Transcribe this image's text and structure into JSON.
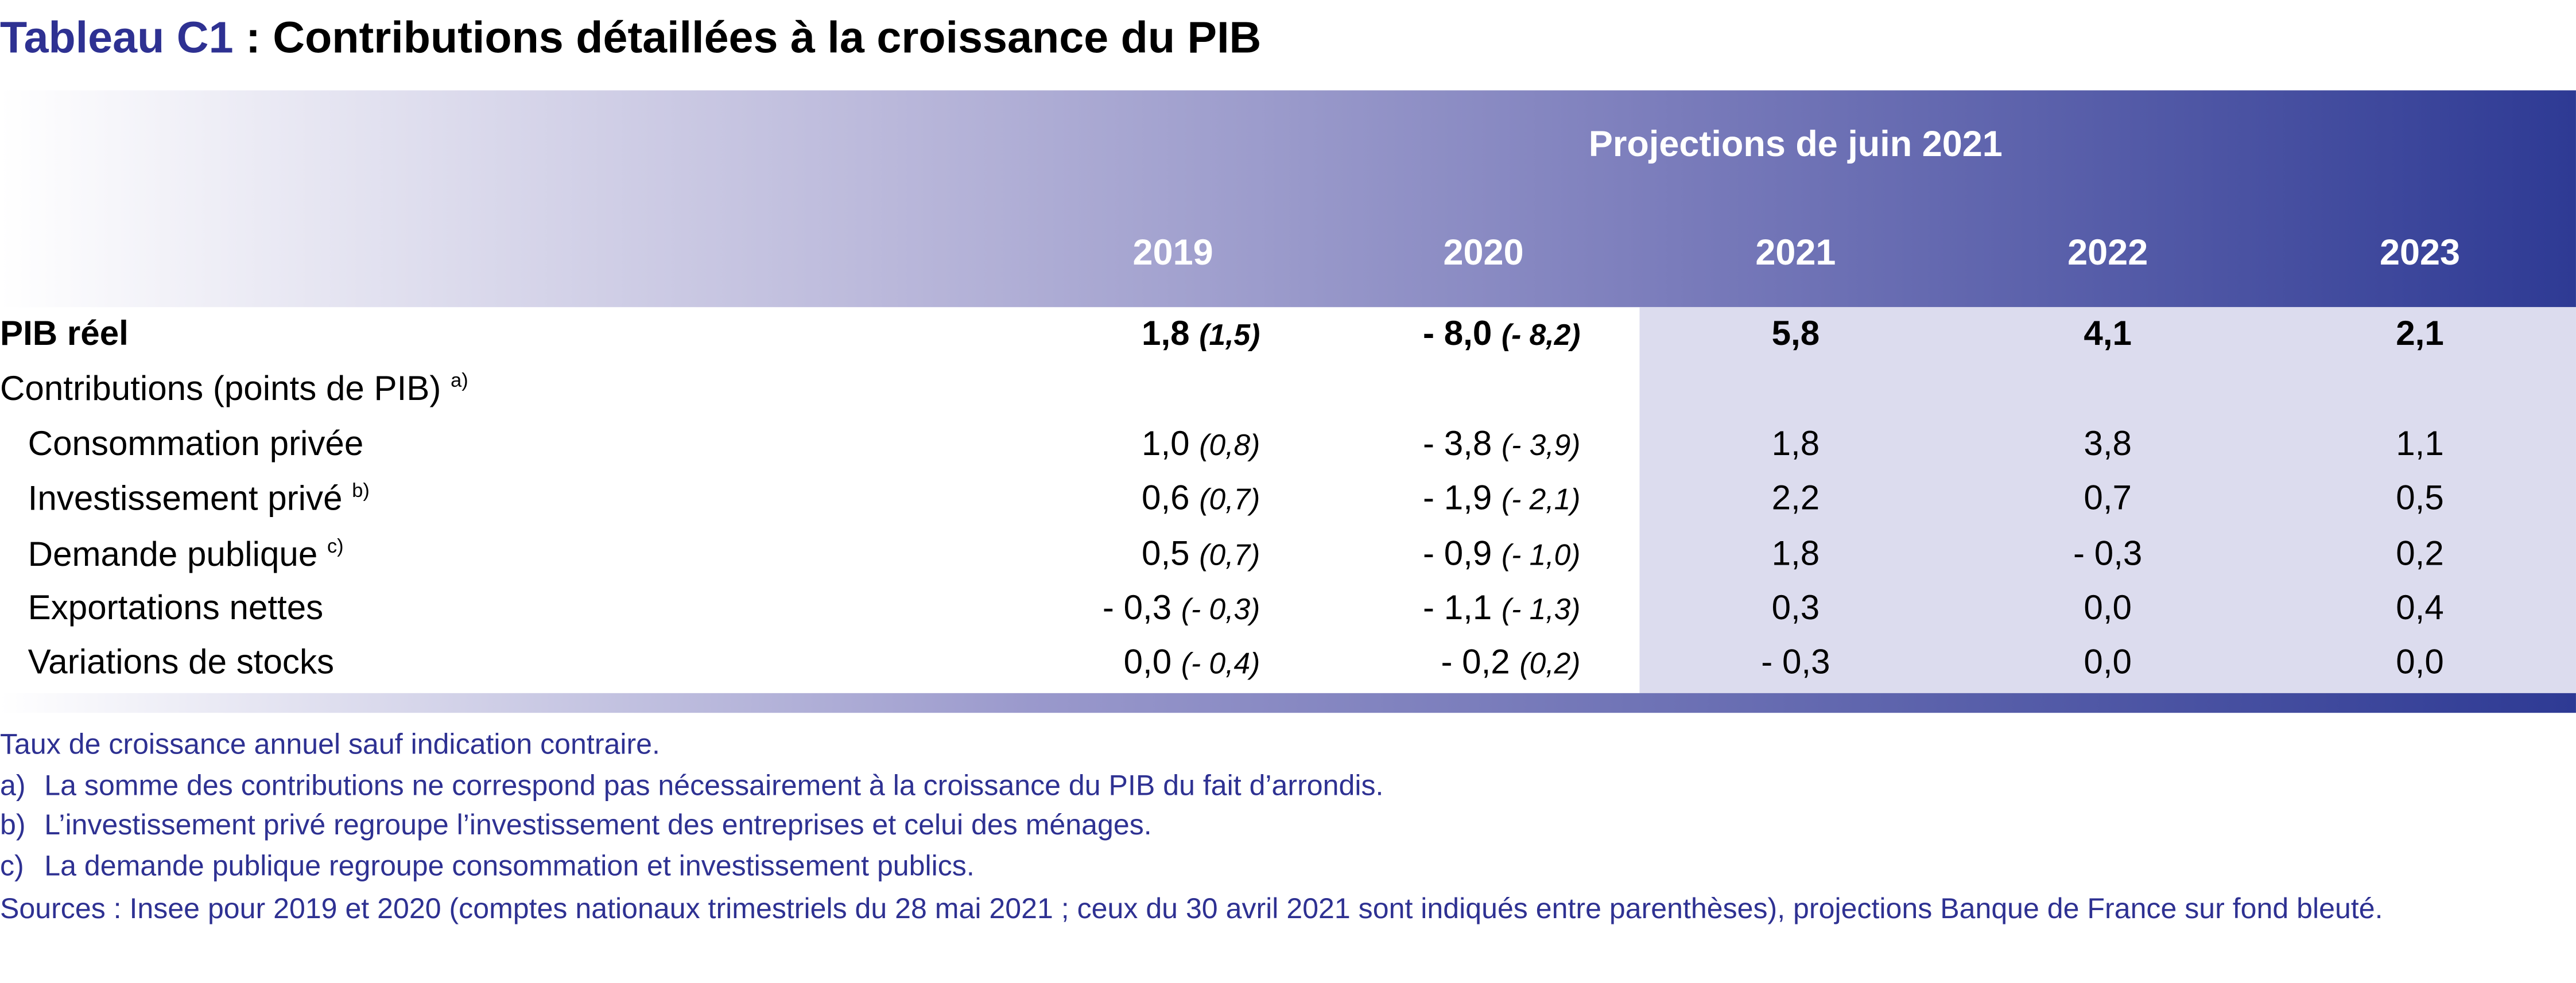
{
  "title": {
    "label": "Tableau C1",
    "text": ": Contributions détaillées à la croissance du PIB"
  },
  "header": {
    "projection": "Projections de juin 2021",
    "years": [
      "2019",
      "2020",
      "2021",
      "2022",
      "2023"
    ]
  },
  "rows": [
    {
      "label": "PIB réel",
      "values": [
        "1,8",
        "- 8,0",
        "5,8",
        "4,1",
        "2,1"
      ],
      "previous": [
        "(1,5)",
        "(- 8,2)"
      ]
    },
    {
      "label": "Contributions (points de PIB)",
      "note": "a)"
    },
    {
      "label": "Consommation privée",
      "values": [
        "1,0",
        "- 3,8",
        "1,8",
        "3,8",
        "1,1"
      ],
      "previous": [
        "(0,8)",
        "(- 3,9)"
      ]
    },
    {
      "label": "Investissement privé",
      "note": "b)",
      "values": [
        "0,6",
        "- 1,9",
        "2,2",
        "0,7",
        "0,5"
      ],
      "previous": [
        "(0,7)",
        "(- 2,1)"
      ]
    },
    {
      "label": "Demande publique",
      "note": "c)",
      "values": [
        "0,5",
        "- 0,9",
        "1,8",
        "- 0,3",
        "0,2"
      ],
      "previous": [
        "(0,7)",
        "(- 1,0)"
      ]
    },
    {
      "label": "Exportations nettes",
      "values": [
        "- 0,3",
        "- 1,1",
        "0,3",
        "0,0",
        "0,4"
      ],
      "previous": [
        "(- 0,3)",
        "(- 1,3)"
      ]
    },
    {
      "label": "Variations de stocks",
      "values": [
        "0,0",
        "- 0,2",
        "- 0,3",
        "0,0",
        "0,0"
      ],
      "previous": [
        "(- 0,4)",
        "(0,2)"
      ]
    }
  ],
  "notes": {
    "intro": "Taux de croissance annuel sauf indication contraire.",
    "items": [
      {
        "marker": "a)",
        "text": "La somme des contributions ne correspond pas nécessairement à la croissance du PIB du fait d’arrondis."
      },
      {
        "marker": "b)",
        "text": "L’investissement privé regroupe l’investissement des entreprises et celui des ménages."
      },
      {
        "marker": "c)",
        "text": "La demande publique regroupe consommation et investissement publics."
      }
    ],
    "sources": "Sources : Insee pour 2019 et 2020 (comptes nationaux trimestriels du 28 mai 2021 ; ceux du 30 avril 2021 sont indiqués entre parenthèses), projections Banque de France sur fond bleuté."
  }
}
